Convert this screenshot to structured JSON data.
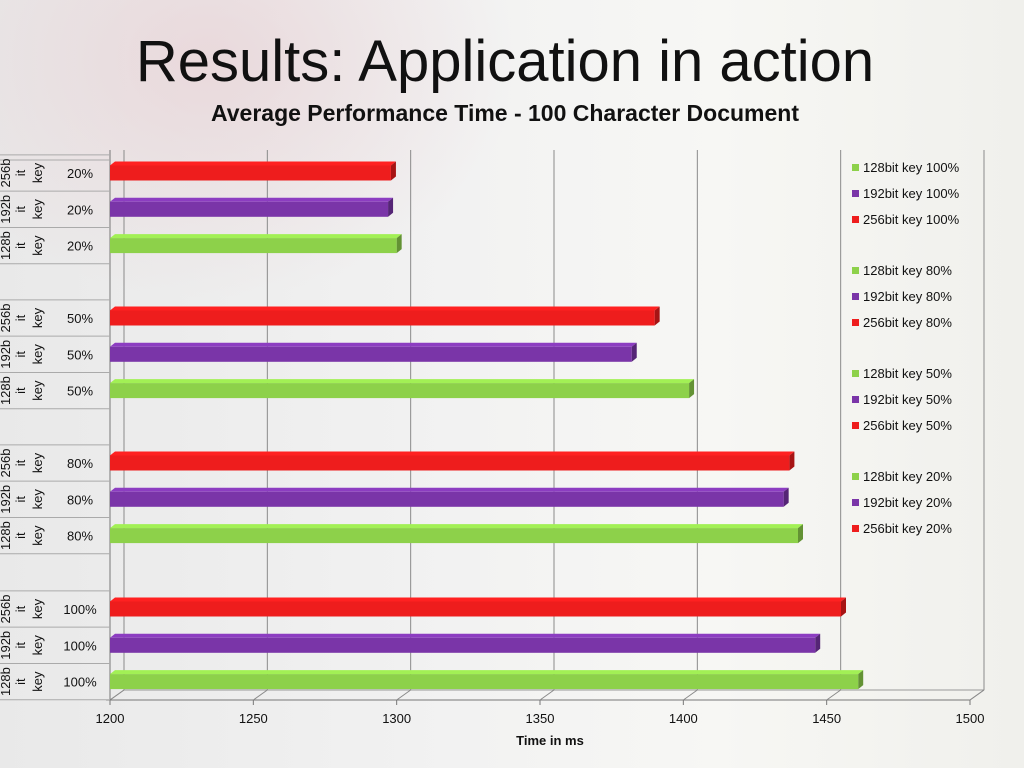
{
  "slide": {
    "title": "Results: Application in action",
    "subtitle": "Average Performance Time - 100 Character Document"
  },
  "colors": {
    "128bit": "#8dd14a",
    "192bit": "#7a35a8",
    "256bit": "#ee1d1d"
  },
  "chart_data": {
    "type": "bar",
    "orientation": "horizontal",
    "title": "Average Performance Time - 100 Character Document",
    "xlabel": "Time in ms",
    "xlim": [
      1200,
      1500
    ],
    "xticks": [
      1200,
      1250,
      1300,
      1350,
      1400,
      1450,
      1500
    ],
    "grid": true,
    "legend_position": "right",
    "groups": [
      {
        "label": "20%",
        "bars": [
          {
            "key_label": "256bit key",
            "series": "256bit",
            "value": 1298
          },
          {
            "key_label": "192bit key",
            "series": "192bit",
            "value": 1297
          },
          {
            "key_label": "128bit key",
            "series": "128bit",
            "value": 1300
          }
        ]
      },
      {
        "label": "50%",
        "bars": [
          {
            "key_label": "256bit key",
            "series": "256bit",
            "value": 1390
          },
          {
            "key_label": "192bit key",
            "series": "192bit",
            "value": 1382
          },
          {
            "key_label": "128bit key",
            "series": "128bit",
            "value": 1402
          }
        ]
      },
      {
        "label": "80%",
        "bars": [
          {
            "key_label": "256bit key",
            "series": "256bit",
            "value": 1437
          },
          {
            "key_label": "192bit key",
            "series": "192bit",
            "value": 1435
          },
          {
            "key_label": "128bit key",
            "series": "128bit",
            "value": 1440
          }
        ]
      },
      {
        "label": "100%",
        "bars": [
          {
            "key_label": "256bit key",
            "series": "256bit",
            "value": 1455
          },
          {
            "key_label": "192bit key",
            "series": "192bit",
            "value": 1446
          },
          {
            "key_label": "128bit key",
            "series": "128bit",
            "value": 1461
          }
        ]
      }
    ],
    "legend": [
      [
        {
          "name": "128bit key 100%",
          "series": "128bit"
        },
        {
          "name": "192bit key 100%",
          "series": "192bit"
        },
        {
          "name": "256bit key 100%",
          "series": "256bit"
        }
      ],
      [
        {
          "name": "128bit key 80%",
          "series": "128bit"
        },
        {
          "name": "192bit key 80%",
          "series": "192bit"
        },
        {
          "name": "256bit key 80%",
          "series": "256bit"
        }
      ],
      [
        {
          "name": "128bit key 50%",
          "series": "128bit"
        },
        {
          "name": "192bit key 50%",
          "series": "192bit"
        },
        {
          "name": "256bit key 50%",
          "series": "256bit"
        }
      ],
      [
        {
          "name": "128bit key 20%",
          "series": "128bit"
        },
        {
          "name": "192bit key 20%",
          "series": "192bit"
        },
        {
          "name": "256bit key 20%",
          "series": "256bit"
        }
      ]
    ]
  }
}
